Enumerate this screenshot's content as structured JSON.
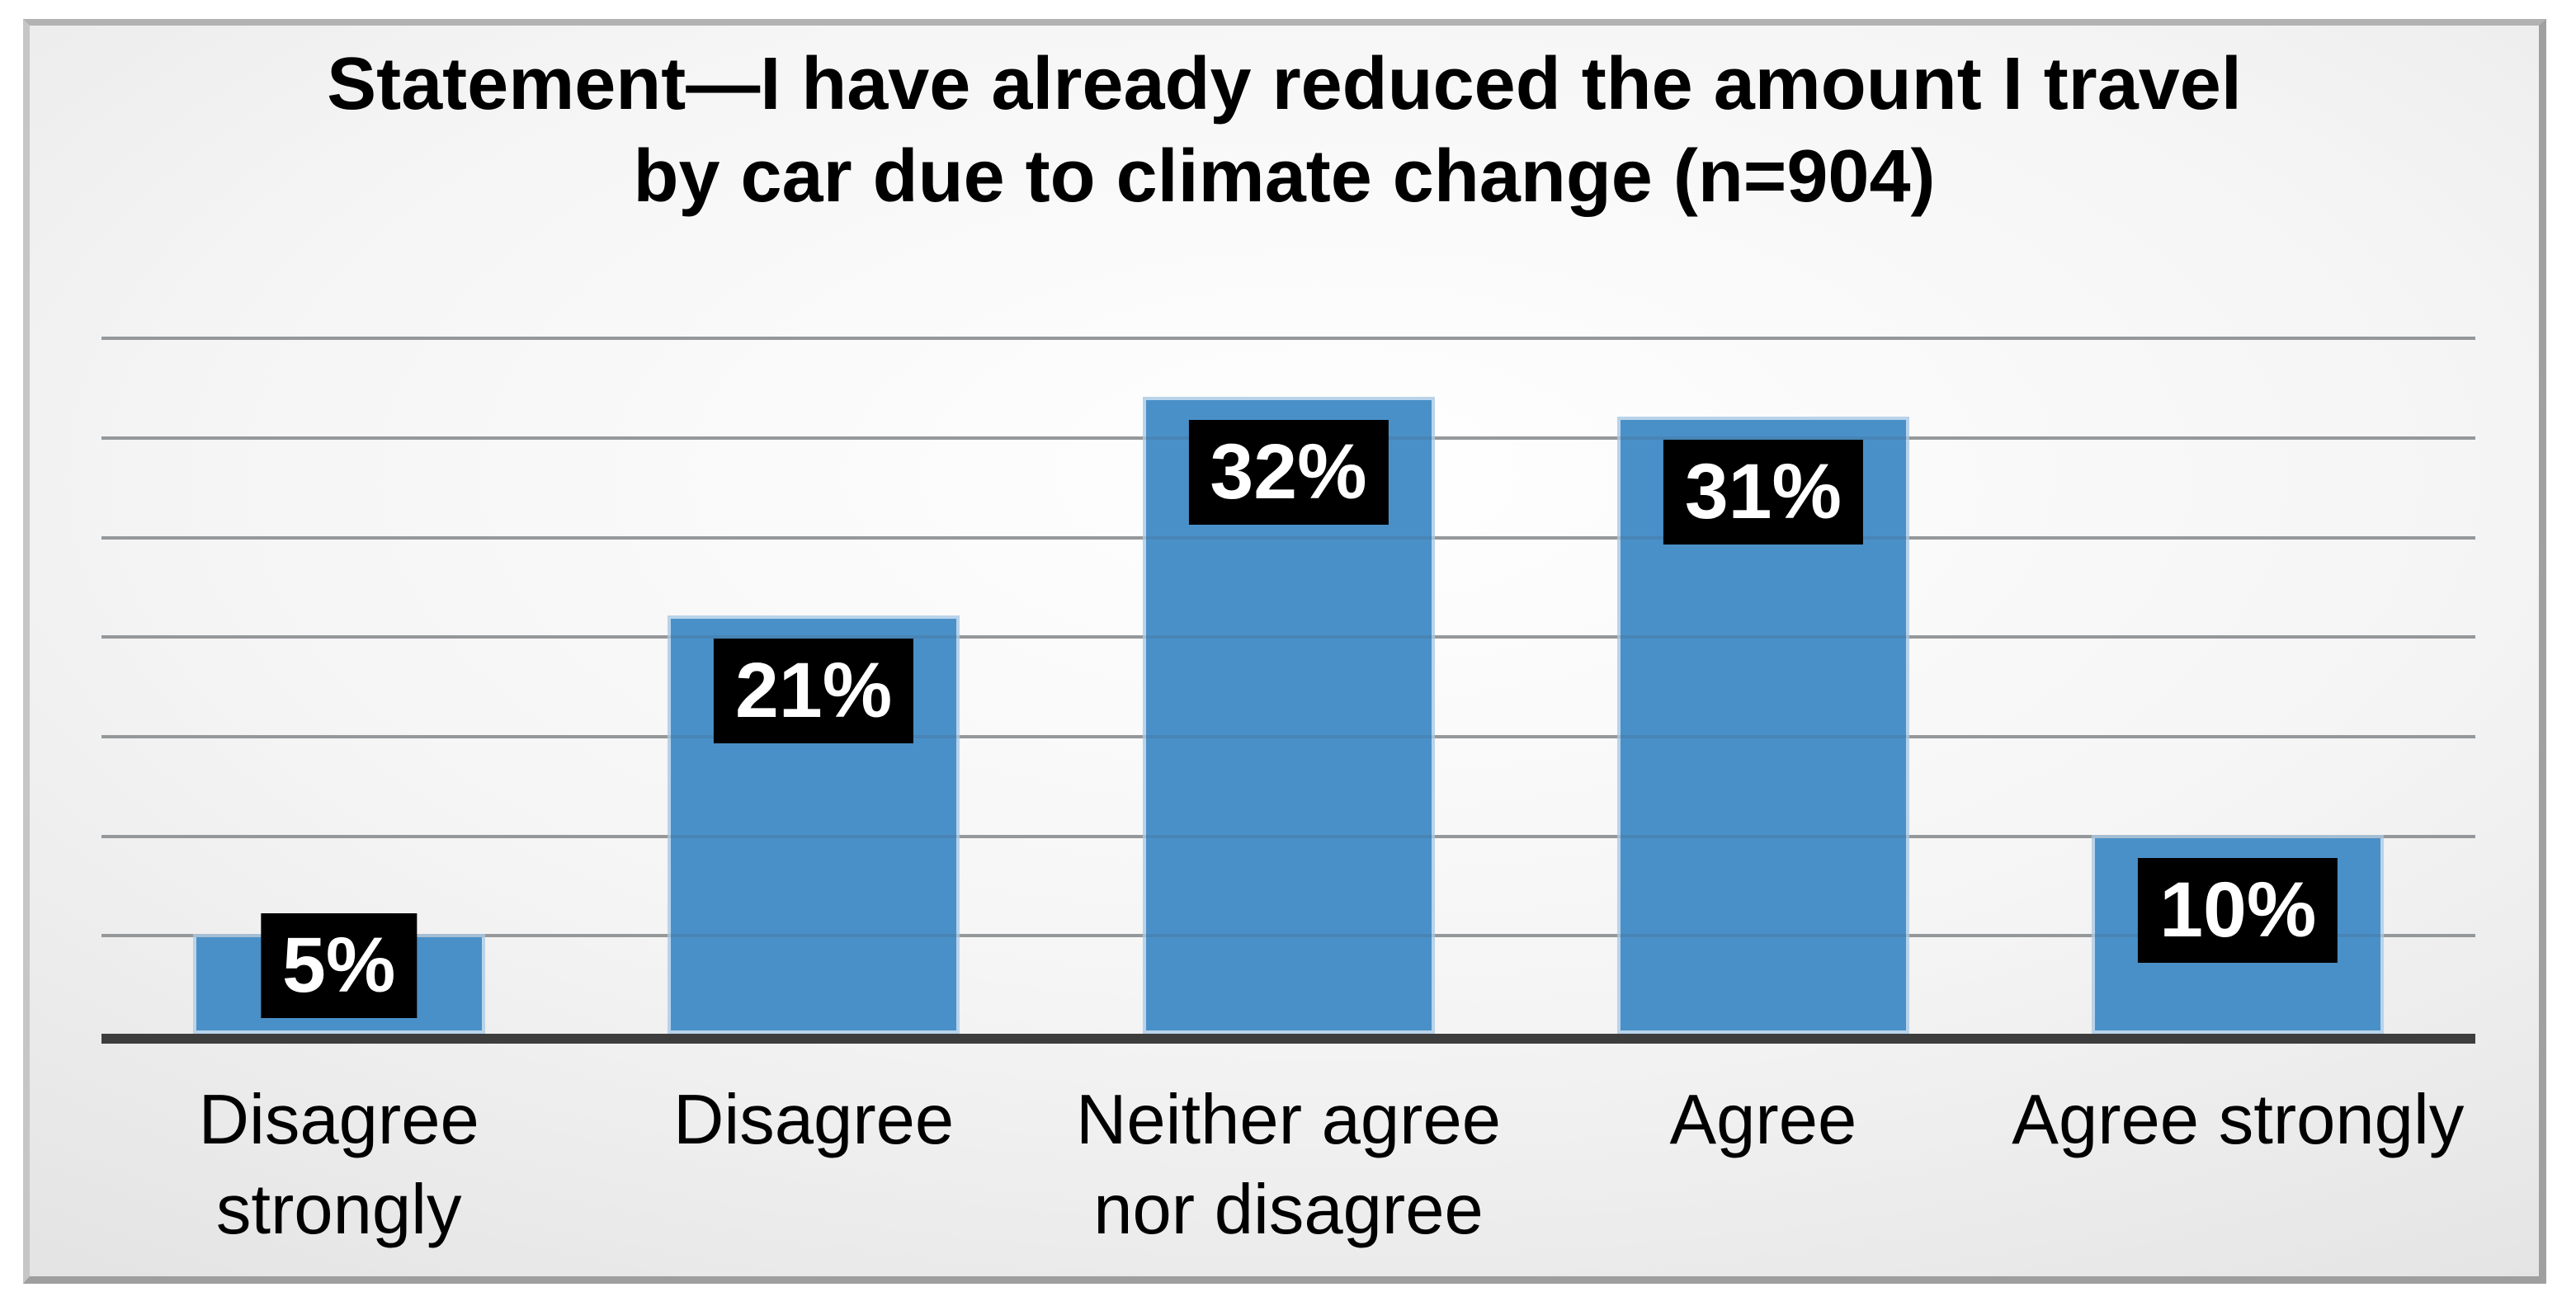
{
  "page": {
    "background_color": "#ffffff"
  },
  "slide": {
    "border_top_color": "#b2b2b2",
    "shadow_color": "#9e9e9e"
  },
  "chart_data": {
    "type": "bar",
    "title": "Statement—I have already reduced the amount I travel\nby car due to climate change (n=904)",
    "categories": [
      "Disagree\nstrongly",
      "Disagree",
      "Neither agree\nnor disagree",
      "Agree",
      "Agree strongly"
    ],
    "values": [
      5,
      21,
      32,
      31,
      10
    ],
    "labels": [
      "5%",
      "21%",
      "32%",
      "31%",
      "10%"
    ],
    "xlabel": "",
    "ylabel": "",
    "ylim": [
      0,
      38
    ],
    "gridlines_pct": [
      5,
      10,
      15,
      20,
      25,
      30,
      35
    ],
    "grid": true,
    "legend": "none",
    "bar_color": "#4a90c8",
    "bar_border_color": "#b9d3ea",
    "value_label_bg": "#000000",
    "value_label_text_color": "#ffffff",
    "axis_color": "#3d3d3d",
    "gridline_color": "#a6a6a6"
  }
}
